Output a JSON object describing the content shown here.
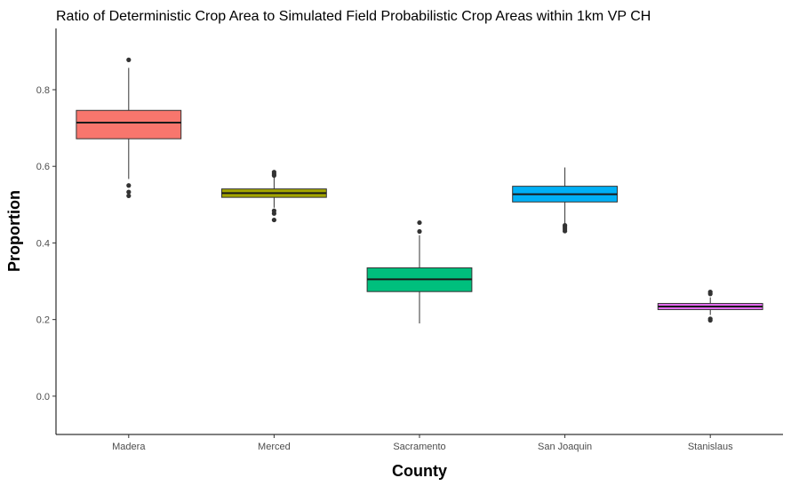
{
  "chart_data": {
    "type": "boxplot",
    "title": "Ratio of Deterministic Crop Area to Simulated Field Probabilistic Crop Areas within 1km VP CH",
    "xlabel": "County",
    "ylabel": "Proportion",
    "ylim": [
      -0.1,
      0.96
    ],
    "yticks": [
      0.0,
      0.2,
      0.4,
      0.6,
      0.8
    ],
    "yticklabels": [
      "0.0",
      "0.2",
      "0.4",
      "0.6",
      "0.8"
    ],
    "grid": false,
    "legend": "none",
    "categories": [
      "Madera",
      "Merced",
      "Sacramento",
      "San Joaquin",
      "Stanislaus"
    ],
    "boxes": [
      {
        "category": "Madera",
        "color": "#F8766D",
        "whisker_low": 0.567,
        "q1": 0.672,
        "median": 0.714,
        "q3": 0.746,
        "whisker_high": 0.857,
        "outliers": [
          0.878,
          0.55,
          0.533,
          0.523
        ]
      },
      {
        "category": "Merced",
        "color": "#A3A500",
        "whisker_low": 0.492,
        "q1": 0.519,
        "median": 0.53,
        "q3": 0.541,
        "whisker_high": 0.574,
        "outliers": [
          0.585,
          0.58,
          0.576,
          0.484,
          0.477,
          0.46
        ]
      },
      {
        "category": "Sacramento",
        "color": "#00BF7D",
        "whisker_low": 0.19,
        "q1": 0.273,
        "median": 0.305,
        "q3": 0.335,
        "whisker_high": 0.42,
        "outliers": [
          0.453,
          0.43
        ]
      },
      {
        "category": "San Joaquin",
        "color": "#00B0F6",
        "whisker_low": 0.45,
        "q1": 0.507,
        "median": 0.527,
        "q3": 0.548,
        "whisker_high": 0.597,
        "outliers": [
          0.446,
          0.441,
          0.436,
          0.431
        ]
      },
      {
        "category": "Stanislaus",
        "color": "#E76BF3",
        "whisker_low": 0.212,
        "q1": 0.226,
        "median": 0.234,
        "q3": 0.242,
        "whisker_high": 0.258,
        "outliers": [
          0.272,
          0.267,
          0.202,
          0.198
        ]
      }
    ]
  }
}
